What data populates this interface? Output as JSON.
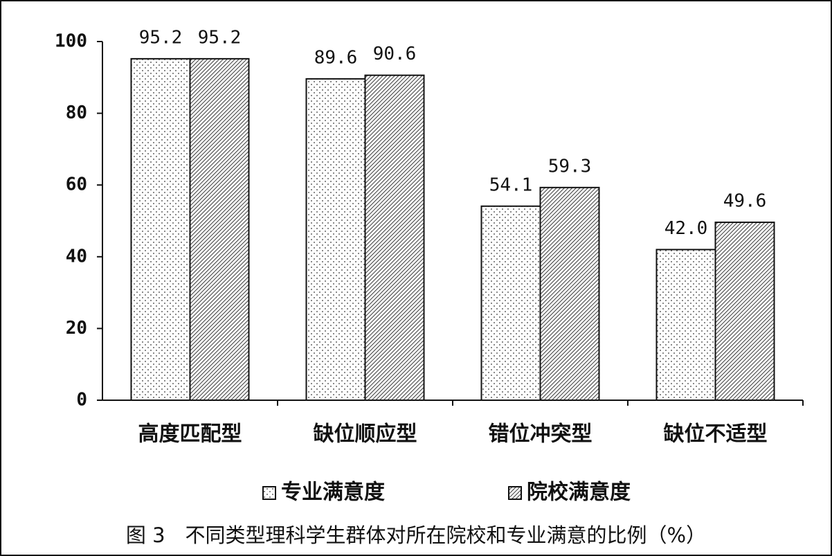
{
  "chart_data": {
    "type": "bar",
    "caption": "图 3　不同类型理科学生群体对所在院校和专业满意的比例（%）",
    "categories": [
      "高度匹配型",
      "缺位顺应型",
      "错位冲突型",
      "缺位不适型"
    ],
    "series": [
      {
        "name": "专业满意度",
        "color": "#000000",
        "pattern": "dots",
        "values": [
          95.2,
          89.6,
          54.1,
          42.0
        ],
        "value_labels": [
          "95.2",
          "89.6",
          "54.1",
          "42.0"
        ]
      },
      {
        "name": "院校满意度",
        "color": "#000000",
        "pattern": "hatch",
        "values": [
          95.2,
          90.6,
          59.3,
          49.6
        ],
        "value_labels": [
          "95.2",
          "90.6",
          "59.3",
          "49.6"
        ]
      }
    ],
    "ylim": [
      0,
      100
    ],
    "yticks": [
      0,
      20,
      40,
      60,
      80,
      100
    ],
    "grid": false
  }
}
